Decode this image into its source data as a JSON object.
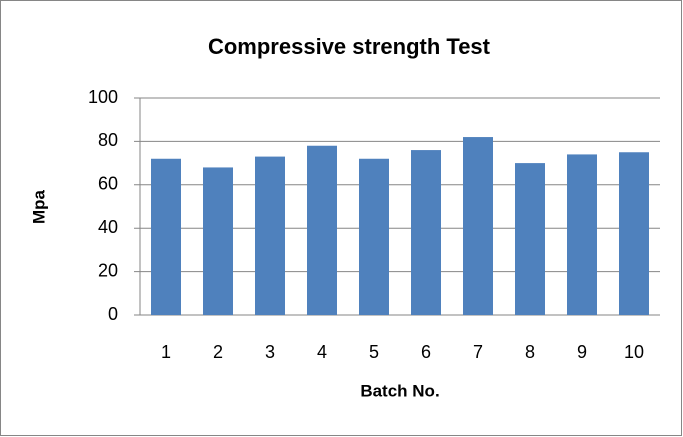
{
  "chart_data": {
    "type": "bar",
    "title": "Compressive strength Test",
    "x_label": "Batch No.",
    "y_label": "Mpa",
    "categories": [
      "1",
      "2",
      "3",
      "4",
      "5",
      "6",
      "7",
      "8",
      "9",
      "10"
    ],
    "values": [
      72,
      68,
      73,
      78,
      72,
      76,
      82,
      70,
      74,
      75
    ],
    "color": "#4f81bd",
    "ylim": [
      0,
      100
    ],
    "yticks": [
      0,
      20,
      40,
      60,
      80,
      100
    ],
    "grid": true
  }
}
